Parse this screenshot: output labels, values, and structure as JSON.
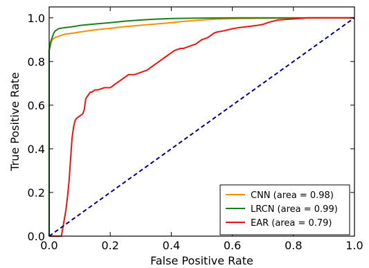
{
  "chart_data": {
    "type": "line",
    "title": "",
    "xlabel": "False Positive Rate",
    "ylabel": "True Positive Rate",
    "xlim": [
      0.0,
      1.0
    ],
    "ylim": [
      0.0,
      1.05
    ],
    "xticks": [
      "0.0",
      "0.2",
      "0.4",
      "0.6",
      "0.8",
      "1.0"
    ],
    "yticks": [
      "0.0",
      "0.2",
      "0.4",
      "0.6",
      "0.8",
      "1.0"
    ],
    "grid": false,
    "legend_position": "lower-right",
    "series": [
      {
        "name": "CNN (area = 0.98)",
        "color": "#ff8c00",
        "style": "solid",
        "x": [
          0.0,
          0.0,
          0.005,
          0.01,
          0.015,
          0.02,
          0.03,
          0.05,
          0.08,
          0.1,
          0.15,
          0.2,
          0.25,
          0.3,
          0.35,
          0.4,
          0.45,
          0.5,
          0.55,
          0.6,
          0.7,
          0.8,
          0.9,
          1.0
        ],
        "y": [
          0.0,
          0.85,
          0.88,
          0.9,
          0.905,
          0.91,
          0.915,
          0.925,
          0.93,
          0.935,
          0.945,
          0.952,
          0.96,
          0.966,
          0.972,
          0.978,
          0.985,
          0.99,
          0.994,
          0.996,
          0.998,
          0.999,
          1.0,
          1.0
        ]
      },
      {
        "name": "LRCN (area = 0.99)",
        "color": "#1a7f1a",
        "style": "solid",
        "x": [
          0.0,
          0.0,
          0.005,
          0.01,
          0.015,
          0.02,
          0.03,
          0.05,
          0.08,
          0.1,
          0.15,
          0.2,
          0.25,
          0.3,
          0.35,
          0.4,
          0.5,
          0.6,
          0.7,
          0.8,
          0.9,
          1.0
        ],
        "y": [
          0.0,
          0.85,
          0.89,
          0.91,
          0.93,
          0.94,
          0.95,
          0.955,
          0.96,
          0.965,
          0.972,
          0.978,
          0.985,
          0.99,
          0.994,
          0.997,
          0.999,
          1.0,
          1.0,
          1.0,
          1.0,
          1.0
        ]
      },
      {
        "name": "EAR (area = 0.79)",
        "color": "#ee1111",
        "style": "solid",
        "x": [
          0.0,
          0.04,
          0.045,
          0.05,
          0.055,
          0.06,
          0.065,
          0.07,
          0.075,
          0.08,
          0.085,
          0.09,
          0.1,
          0.11,
          0.115,
          0.12,
          0.13,
          0.135,
          0.14,
          0.15,
          0.16,
          0.18,
          0.2,
          0.22,
          0.24,
          0.25,
          0.26,
          0.28,
          0.3,
          0.32,
          0.33,
          0.34,
          0.35,
          0.36,
          0.38,
          0.4,
          0.41,
          0.42,
          0.43,
          0.44,
          0.46,
          0.48,
          0.5,
          0.52,
          0.53,
          0.54,
          0.55,
          0.57,
          0.6,
          0.62,
          0.65,
          0.68,
          0.7,
          0.72,
          0.75,
          0.8,
          0.85,
          0.9,
          0.95,
          1.0
        ],
        "y": [
          0.0,
          0.0,
          0.04,
          0.08,
          0.12,
          0.18,
          0.25,
          0.35,
          0.45,
          0.5,
          0.53,
          0.54,
          0.55,
          0.56,
          0.58,
          0.63,
          0.65,
          0.66,
          0.66,
          0.67,
          0.67,
          0.68,
          0.68,
          0.7,
          0.72,
          0.73,
          0.74,
          0.74,
          0.75,
          0.76,
          0.77,
          0.78,
          0.79,
          0.8,
          0.82,
          0.84,
          0.85,
          0.855,
          0.86,
          0.86,
          0.87,
          0.88,
          0.9,
          0.91,
          0.92,
          0.93,
          0.935,
          0.94,
          0.95,
          0.955,
          0.96,
          0.965,
          0.97,
          0.98,
          0.99,
          0.995,
          1.0,
          1.0,
          1.0,
          1.0
        ]
      },
      {
        "name": "",
        "color": "#000080",
        "style": "dashed",
        "x": [
          0.0,
          1.0
        ],
        "y": [
          0.0,
          1.0
        ]
      }
    ]
  }
}
